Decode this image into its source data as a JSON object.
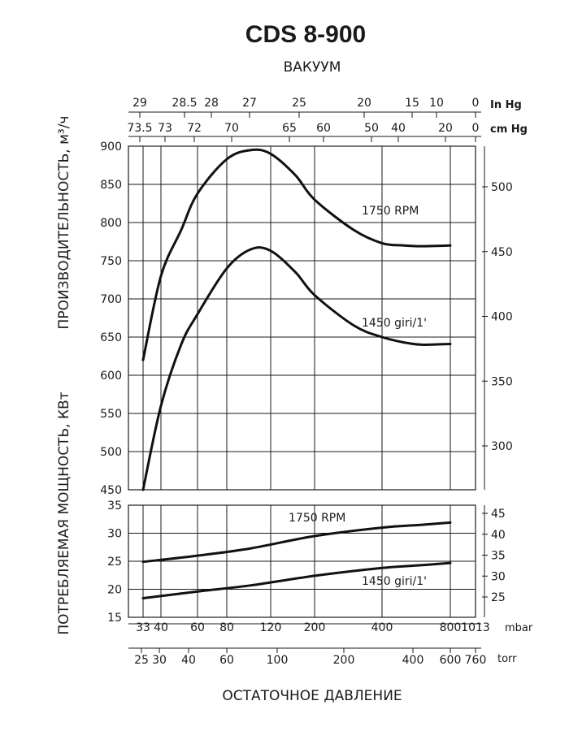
{
  "chart": {
    "title": "CDS 8-900",
    "top_axis_title": "ВАКУУМ",
    "left_axis_title_upper": "ПРОИЗВОДИТЕЛЬНОСТЬ, м³/ч",
    "left_axis_title_lower": "ПОТРЕБЛЯЕМАЯ МОЩНОСТЬ, КВт",
    "bottom_axis_title": "ОСТАТОЧНОЕ ДАВЛЕНИЕ",
    "units": {
      "inhg": "In Hg",
      "cmhg": "cm Hg",
      "mbar": "mbar",
      "torr": "torr"
    },
    "series_labels": {
      "upper_1750": "1750 RPM",
      "upper_1450": "1450 giri/1'",
      "lower_1750": "1750 RPM",
      "lower_1450": "1450 giri/1'"
    }
  },
  "chart_data": [
    {
      "type": "line",
      "title": "CDS 8-900",
      "xlabel": "ОСТАТОЧНОЕ ДАВЛЕНИЕ",
      "ylabel": "ПРОИЗВОДИТЕЛЬНОСТЬ, м³/ч",
      "x_unit": "mbar",
      "ylim": [
        450,
        900
      ],
      "yticks": [
        450,
        500,
        550,
        600,
        650,
        700,
        750,
        800,
        850,
        900
      ],
      "grid": true,
      "series": [
        {
          "name": "1750 RPM",
          "x": [
            33,
            40,
            50,
            60,
            80,
            100,
            120,
            160,
            200,
            300,
            400,
            500,
            600,
            800
          ],
          "y": [
            620,
            730,
            790,
            838,
            883,
            895,
            890,
            862,
            830,
            790,
            773,
            770,
            769,
            770
          ]
        },
        {
          "name": "1450 giri/1'",
          "x": [
            33,
            40,
            50,
            60,
            80,
            100,
            120,
            160,
            200,
            300,
            400,
            500,
            600,
            800
          ],
          "y": [
            450,
            560,
            640,
            680,
            740,
            765,
            763,
            735,
            705,
            665,
            650,
            643,
            640,
            641
          ]
        }
      ]
    },
    {
      "type": "line",
      "ylabel": "ПОТРЕБЛЯЕМАЯ МОЩНОСТЬ, КВт",
      "x_unit": "mbar",
      "ylim": [
        15,
        35
      ],
      "yticks": [
        15,
        20,
        25,
        30,
        35
      ],
      "grid": true,
      "series": [
        {
          "name": "1750 RPM",
          "x": [
            33,
            60,
            100,
            200,
            400,
            600,
            800
          ],
          "y": [
            24.9,
            26.0,
            27.3,
            29.5,
            31.0,
            31.5,
            31.9
          ]
        },
        {
          "name": "1450 giri/1'",
          "x": [
            33,
            60,
            100,
            200,
            400,
            600,
            800
          ],
          "y": [
            18.4,
            19.6,
            20.7,
            22.4,
            23.8,
            24.3,
            24.7
          ]
        }
      ]
    }
  ],
  "axes": {
    "inhg_ticks": [
      "29",
      "28.5",
      "28",
      "27",
      "25",
      "20",
      "15",
      "10",
      "0"
    ],
    "inhg_values": [
      29,
      28.5,
      28,
      27,
      25,
      20,
      15,
      10,
      0
    ],
    "cmhg_ticks": [
      "73.5",
      "73",
      "72",
      "70",
      "65",
      "60",
      "50",
      "40",
      "20",
      "0"
    ],
    "cmhg_values": [
      73.5,
      73,
      72,
      70,
      65,
      60,
      50,
      40,
      20,
      0
    ],
    "mbar_ticks": [
      "33",
      "40",
      "60",
      "80",
      "120",
      "200",
      "400",
      "800",
      "1013"
    ],
    "mbar_values": [
      33,
      40,
      60,
      80,
      120,
      200,
      400,
      800,
      1013
    ],
    "torr_ticks": [
      "25",
      "30",
      "40",
      "60",
      "100",
      "200",
      "400",
      "600",
      "760"
    ],
    "torr_values": [
      25,
      30,
      40,
      60,
      100,
      200,
      400,
      600,
      760
    ],
    "upper_left_ticks": [
      "450",
      "500",
      "550",
      "600",
      "650",
      "700",
      "750",
      "800",
      "850",
      "900"
    ],
    "upper_right_ticks": [
      "300",
      "350",
      "400",
      "450",
      "500"
    ],
    "upper_right_values": [
      300,
      350,
      400,
      450,
      500
    ],
    "lower_left_ticks": [
      "15",
      "20",
      "25",
      "30",
      "35"
    ],
    "lower_right_ticks": [
      "25",
      "30",
      "35",
      "40",
      "45"
    ],
    "lower_right_values": [
      25,
      30,
      35,
      40,
      45
    ]
  }
}
